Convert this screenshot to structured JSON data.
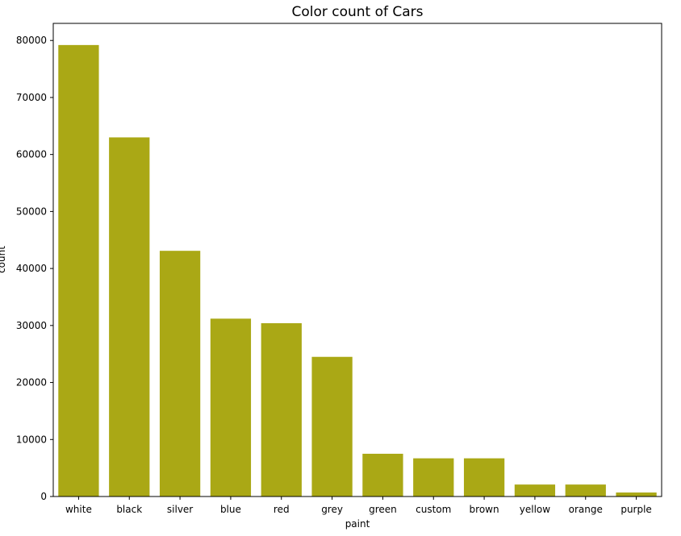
{
  "chart_data": {
    "type": "bar",
    "title": "Color count of Cars",
    "xlabel": "paint",
    "ylabel": "count",
    "categories": [
      "white",
      "black",
      "silver",
      "blue",
      "red",
      "grey",
      "green",
      "custom",
      "brown",
      "yellow",
      "orange",
      "purple"
    ],
    "values": [
      79200,
      63000,
      43100,
      31200,
      30400,
      24500,
      7500,
      6700,
      6700,
      2100,
      2100,
      700
    ],
    "ylim": [
      0,
      83000
    ],
    "yticks": [
      0,
      10000,
      20000,
      30000,
      40000,
      50000,
      60000,
      70000,
      80000
    ],
    "grid": false,
    "bar_color": "#aaa815"
  }
}
